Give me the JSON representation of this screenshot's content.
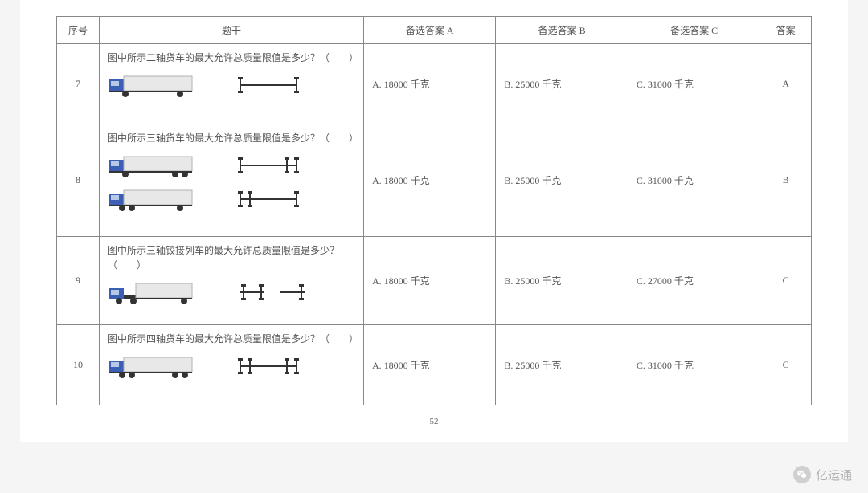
{
  "table": {
    "headers": {
      "num": "序号",
      "stem": "题干",
      "optA": "备选答案 A",
      "optB": "备选答案 B",
      "optC": "备选答案 C",
      "ans": "答案"
    },
    "rows": [
      {
        "num": "7",
        "stem": "图中所示二轴货车的最大允许总质量限值是多少？（　　）",
        "truck_type": "2axle",
        "optA": "A. 18000 千克",
        "optB": "B. 25000 千克",
        "optC": "C. 31000 千克",
        "ans": "A"
      },
      {
        "num": "8",
        "stem": "图中所示三轴货车的最大允许总质量限值是多少？（　　）",
        "truck_type": "3axle_double",
        "optA": "A. 18000 千克",
        "optB": "B. 25000 千克",
        "optC": "C. 31000 千克",
        "ans": "B"
      },
      {
        "num": "9",
        "stem": "图中所示三轴铰接列车的最大允许总质量限值是多少？（　　）",
        "truck_type": "3axle_articulated",
        "optA": "A. 18000 千克",
        "optB": "B. 25000 千克",
        "optC": "C. 27000 千克",
        "ans": "C"
      },
      {
        "num": "10",
        "stem": "图中所示四轴货车的最大允许总质量限值是多少？（　　）",
        "truck_type": "4axle",
        "optA": "A. 18000 千克",
        "optB": "B. 25000 千克",
        "optC": "C. 31000 千克",
        "ans": "C"
      }
    ]
  },
  "page_num": "52",
  "watermark": "亿运通",
  "colors": {
    "cab": "#3a5fb5",
    "cab_window": "#b8c8e8",
    "cargo_body": "#e8e8e8",
    "cargo_stroke": "#b0b0b0",
    "wheel": "#333",
    "chassis": "#333",
    "axle_schematic": "#333"
  }
}
